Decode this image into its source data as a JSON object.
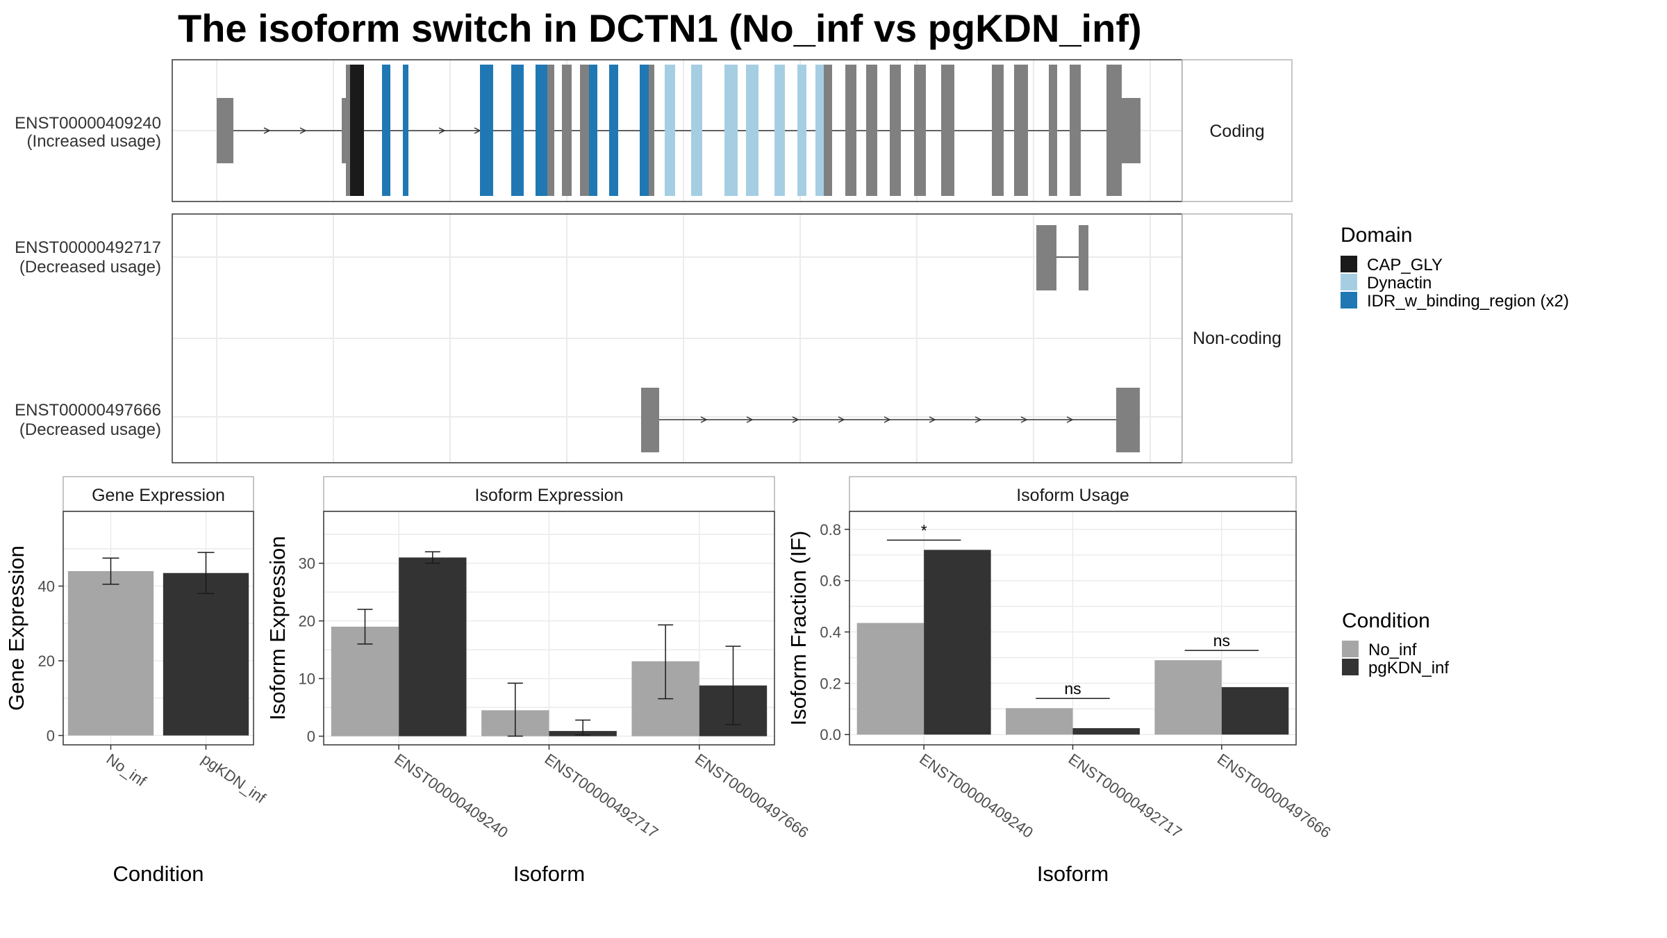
{
  "title": "The isoform switch in DCTN1 (No_inf vs pgKDN_inf)",
  "colors": {
    "exon": "#808080",
    "cap_gly": "#1a1a1a",
    "dynactin": "#a6cee3",
    "idr": "#1f78b4",
    "no_inf": "#a6a6a6",
    "pgkdn_inf": "#333333",
    "grid": "#ebebeb",
    "panel_border": "#333333",
    "strip_border": "#b3b3b3"
  },
  "structure": {
    "coding_strip": "Coding",
    "noncoding_strip": "Non-coding",
    "isoforms": [
      {
        "id": "ENST00000409240",
        "usage": "(Increased usage)",
        "panel": "coding"
      },
      {
        "id": "ENST00000492717",
        "usage": "(Decreased usage)",
        "panel": "noncoding"
      },
      {
        "id": "ENST00000497666",
        "usage": "(Decreased usage)",
        "panel": "noncoding"
      }
    ]
  },
  "legend_domain": {
    "title": "Domain",
    "items": [
      {
        "label": "CAP_GLY",
        "color": "#1a1a1a"
      },
      {
        "label": "Dynactin",
        "color": "#a6cee3"
      },
      {
        "label": "IDR_w_binding_region (x2)",
        "color": "#1f78b4"
      }
    ]
  },
  "legend_condition": {
    "title": "Condition",
    "items": [
      {
        "label": "No_inf",
        "color": "#a6a6a6"
      },
      {
        "label": "pgKDN_inf",
        "color": "#333333"
      }
    ]
  },
  "chart_data": [
    {
      "type": "bar",
      "title": "Gene Expression",
      "xlabel": "Condition",
      "ylabel": "Gene Expression",
      "categories": [
        "No_inf",
        "pgKDN_inf"
      ],
      "values": [
        44,
        43.5
      ],
      "error_low": [
        40.5,
        38
      ],
      "error_high": [
        47.5,
        49
      ],
      "ylim": [
        -2.5,
        60
      ],
      "yticks": [
        0,
        20,
        40
      ]
    },
    {
      "type": "bar",
      "title": "Isoform Expression",
      "xlabel": "Isoform",
      "ylabel": "Isoform Expression",
      "categories": [
        "ENST00000409240",
        "ENST00000492717",
        "ENST00000497666"
      ],
      "series": [
        {
          "name": "No_inf",
          "values": [
            19,
            4.5,
            13
          ],
          "error_low": [
            16,
            0,
            6.5
          ],
          "error_high": [
            22,
            9.2,
            19.3
          ]
        },
        {
          "name": "pgKDN_inf",
          "values": [
            31,
            0.9,
            8.8
          ],
          "error_low": [
            30,
            0.2,
            2
          ],
          "error_high": [
            32,
            2.8,
            15.6
          ]
        }
      ],
      "ylim": [
        -1.5,
        39
      ],
      "yticks": [
        0,
        10,
        20,
        30
      ]
    },
    {
      "type": "bar",
      "title": "Isoform Usage",
      "xlabel": "Isoform",
      "ylabel": "Isoform Fraction (IF)",
      "categories": [
        "ENST00000409240",
        "ENST00000492717",
        "ENST00000497666"
      ],
      "series": [
        {
          "name": "No_inf",
          "values": [
            0.435,
            0.103,
            0.29
          ]
        },
        {
          "name": "pgKDN_inf",
          "values": [
            0.72,
            0.025,
            0.185
          ]
        }
      ],
      "significance": [
        "*",
        "ns",
        "ns"
      ],
      "ylim": [
        -0.04,
        0.87
      ],
      "yticks": [
        0.0,
        0.2,
        0.4,
        0.6,
        0.8
      ],
      "ytick_labels": [
        "0.0",
        "0.2",
        "0.4",
        "0.6",
        "0.8"
      ]
    }
  ]
}
